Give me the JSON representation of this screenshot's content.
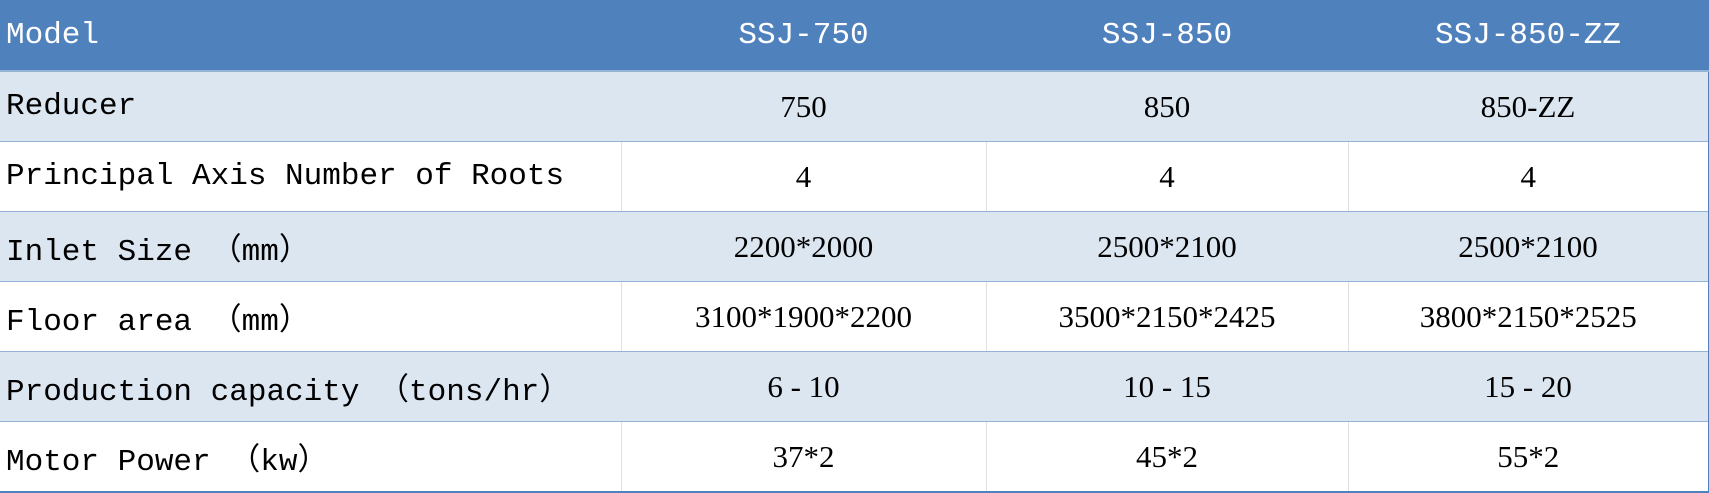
{
  "table": {
    "header": [
      "Model",
      "SSJ-750",
      "SSJ-850",
      "SSJ-850-ZZ"
    ],
    "rows": [
      [
        "Reducer",
        "750",
        "850",
        "850-ZZ"
      ],
      [
        "Principal Axis Number of Roots",
        "4",
        "4",
        "4"
      ],
      [
        "Inlet Size （mm）",
        "2200*2000",
        "2500*2100",
        "2500*2100"
      ],
      [
        "Floor area （mm）",
        "3100*1900*2200",
        "3500*2150*2425",
        "3800*2150*2525"
      ],
      [
        "Production capacity （tons/hr）",
        "6 - 10",
        "10 - 15",
        "15 - 20"
      ],
      [
        "Motor Power （kw）",
        "37*2",
        "45*2",
        "55*2"
      ]
    ]
  },
  "colors": {
    "header_bg": "#4F81BD",
    "shaded_row": "#DCE6F1",
    "border": "#95B3D7"
  }
}
